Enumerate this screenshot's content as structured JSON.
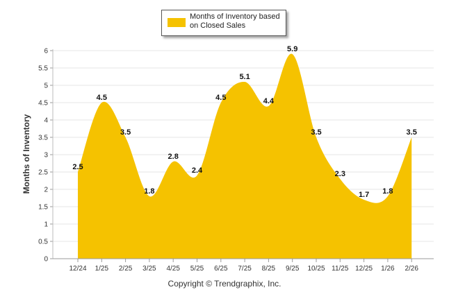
{
  "chart_data": {
    "type": "area",
    "categories": [
      "12/24",
      "1/25",
      "2/25",
      "3/25",
      "4/25",
      "5/25",
      "6/25",
      "7/25",
      "8/25",
      "9/25",
      "10/25",
      "11/25",
      "12/25",
      "1/26",
      "2/26"
    ],
    "series": [
      {
        "name": "Months of Inventory based on Closed Sales",
        "values": [
          2.5,
          4.5,
          3.5,
          1.8,
          2.8,
          2.4,
          4.5,
          5.1,
          4.4,
          5.9,
          3.5,
          2.3,
          1.7,
          1.8,
          3.5
        ]
      }
    ],
    "data_labels": [
      "2.5",
      "4.5",
      "3.5",
      "1.8",
      "2.8",
      "2.4",
      "4.5",
      "5.1",
      "4.4",
      "5.9",
      "3.5",
      "2.3",
      "1.7",
      "1.8",
      "3.5"
    ],
    "ylabel": "Months of Inventory",
    "xlabel": "",
    "ylim": [
      0,
      6
    ],
    "yticks": [
      "0",
      "0.5",
      "1",
      "1.5",
      "2",
      "2.5",
      "3",
      "3.5",
      "4",
      "4.5",
      "5",
      "5.5",
      "6"
    ],
    "legend": "top-center",
    "grid": true,
    "color": "#f5c200"
  },
  "legend": {
    "label": "Months of Inventory based on Closed Sales"
  },
  "footer": {
    "copyright": "Copyright © Trendgraphix, Inc."
  }
}
